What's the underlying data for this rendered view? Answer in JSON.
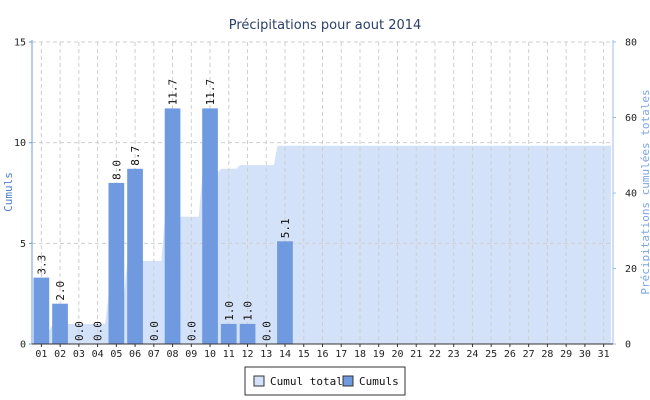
{
  "chart_data": {
    "type": "bar",
    "title": "Précipitations pour aout 2014",
    "ylabel_left": "Cumuls",
    "ylabel_right": "Précipitations cumulées totales",
    "ylim_left": [
      0,
      15
    ],
    "yticks_left": [
      "0",
      "5",
      "10",
      "15"
    ],
    "ylim_right": [
      0,
      80
    ],
    "yticks_right": [
      "0",
      "20",
      "40",
      "60",
      "80"
    ],
    "categories": [
      "01",
      "02",
      "03",
      "04",
      "05",
      "06",
      "07",
      "08",
      "09",
      "10",
      "11",
      "12",
      "13",
      "14",
      "15",
      "16",
      "17",
      "18",
      "19",
      "20",
      "21",
      "22",
      "23",
      "24",
      "25",
      "26",
      "27",
      "28",
      "29",
      "30",
      "31"
    ],
    "series": [
      {
        "name": "Cumuls",
        "type": "bar",
        "axis": "left",
        "color": "#6f9ae0",
        "values": [
          3.3,
          2.0,
          0.0,
          0.0,
          8.0,
          8.7,
          0.0,
          11.7,
          0.0,
          11.7,
          1.0,
          1.0,
          0.0,
          5.1,
          null,
          null,
          null,
          null,
          null,
          null,
          null,
          null,
          null,
          null,
          null,
          null,
          null,
          null,
          null,
          null,
          null
        ],
        "labels": [
          "3.3",
          "2.0",
          "0.0",
          "0.0",
          "8.0",
          "8.7",
          "0.0",
          "11.7",
          "0.0",
          "11.7",
          "1.0",
          "1.0",
          "0.0",
          "5.1"
        ]
      },
      {
        "name": "Cumul total",
        "type": "area",
        "axis": "right",
        "color": "#d3e1f9",
        "values": [
          3.3,
          5.3,
          5.3,
          5.3,
          13.3,
          22.0,
          22.0,
          33.7,
          33.7,
          45.4,
          46.4,
          47.4,
          47.4,
          52.5,
          52.5,
          52.5,
          52.5,
          52.5,
          52.5,
          52.5,
          52.5,
          52.5,
          52.5,
          52.5,
          52.5,
          52.5,
          52.5,
          52.5,
          52.5,
          52.5,
          52.5
        ]
      }
    ],
    "grid": true,
    "legend": "bottom-center"
  }
}
